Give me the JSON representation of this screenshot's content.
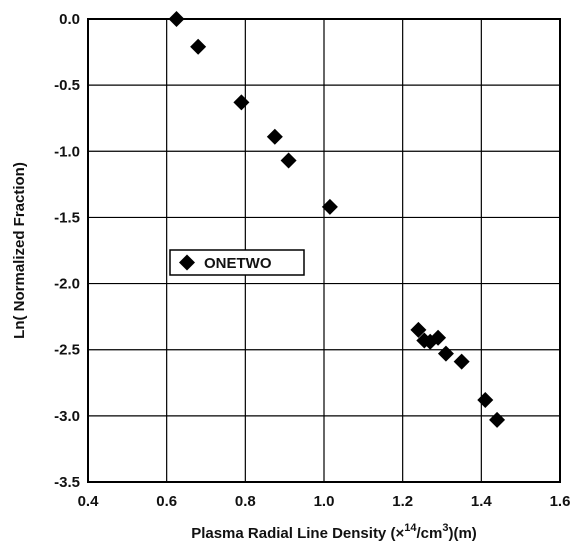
{
  "chart_data": {
    "type": "scatter",
    "xlabel": {
      "prefix": "Plasma Radial Line Density (",
      "times": "×",
      "exp1": "14",
      "mid": "/cm",
      "exp2": "3",
      "suffix": ")(m)"
    },
    "ylabel": "Ln( Normalized Fraction)",
    "xlim": [
      0.4,
      1.6
    ],
    "ylim": [
      -3.5,
      0.0
    ],
    "xticks": [
      "0.4",
      "0.6",
      "0.8",
      "1.0",
      "1.2",
      "1.4",
      "1.6"
    ],
    "yticks": [
      "0.0",
      "-0.5",
      "-1.0",
      "-1.5",
      "-2.0",
      "-2.5",
      "-3.0",
      "-3.5"
    ],
    "grid": true,
    "legend_position": "left-middle",
    "series": [
      {
        "name": "ONETWO",
        "marker": "diamond",
        "color": "#000000",
        "x": [
          0.625,
          0.68,
          0.79,
          0.875,
          0.91,
          1.015,
          1.24,
          1.255,
          1.27,
          1.29,
          1.31,
          1.35,
          1.41,
          1.44
        ],
        "y": [
          0.0,
          -0.21,
          -0.63,
          -0.89,
          -1.07,
          -1.42,
          -2.35,
          -2.43,
          -2.44,
          -2.41,
          -2.53,
          -2.59,
          -2.88,
          -3.03
        ]
      }
    ]
  }
}
